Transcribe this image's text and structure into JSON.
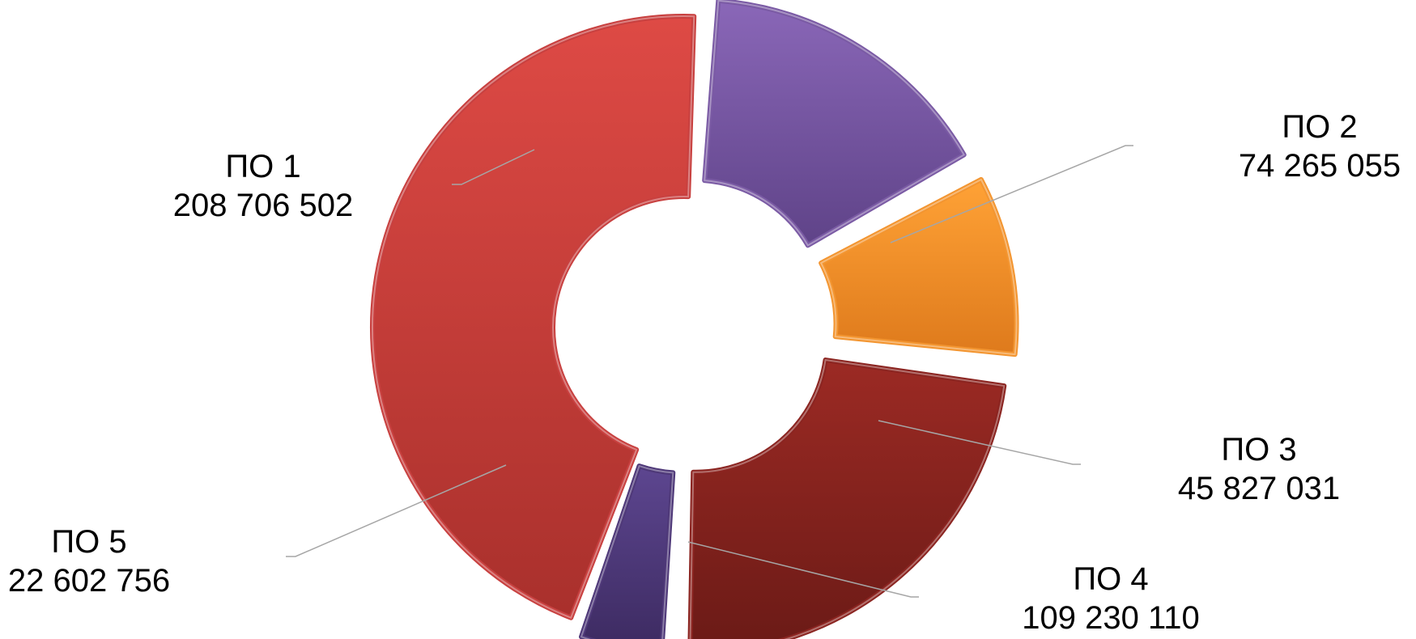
{
  "chart_data": {
    "type": "pie",
    "variant": "donut-exploded",
    "title": "",
    "series": [
      {
        "categories": [
          "ПО 1",
          "ПО 2",
          "ПО 3",
          "ПО 4",
          "ПО 5"
        ],
        "values": [
          208706502,
          74265055,
          45827031,
          109230110,
          22602756
        ],
        "value_labels": [
          "208 706 502",
          "74 265 055",
          "45 827 031",
          "109 230 110",
          "22 602 756"
        ],
        "colors": [
          "#c8403f",
          "#7a5aa4",
          "#f39530",
          "#8b2420",
          "#4e3878"
        ]
      }
    ],
    "legend": "none",
    "data_labels": "outside-with-leader-lines"
  }
}
